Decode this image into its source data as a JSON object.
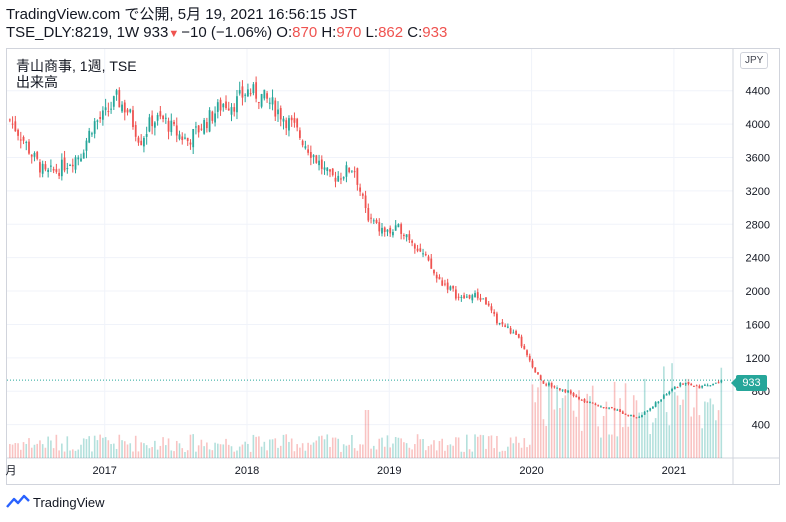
{
  "header": {
    "line1": "TradingView.com で公開, 5月 19, 2021 16:56:15 JST",
    "symbol": "TSE_DLY:8219, 1W",
    "last": "933",
    "change": "−10 (−1.06%)",
    "o_label": "O:",
    "o_value": "870",
    "h_label": "H:",
    "h_value": "970",
    "l_label": "L:",
    "l_value": "862",
    "c_label": "C:",
    "c_value": "933"
  },
  "legend": {
    "title": "青山商事, 1週, TSE",
    "volume": "出来高"
  },
  "currency": "JPY",
  "current_price_label": "933",
  "brand": "TradingView",
  "icons": {
    "brand": "tradingview-logo-icon",
    "change_direction": "down-triangle-icon"
  },
  "colors": {
    "up": "#26a69a",
    "down": "#ef5350",
    "grid": "#f0f3fa",
    "last_line": "#26a69a"
  },
  "chart_data": {
    "type": "candlestick",
    "x_ticks": [
      "月",
      "2017",
      "2018",
      "2019",
      "2020",
      "2021"
    ],
    "y_ticks": [
      400,
      800,
      1200,
      1600,
      2000,
      2400,
      2800,
      3200,
      3600,
      4000,
      4400
    ],
    "ylim": [
      0,
      4900
    ],
    "grid": true,
    "last_price": 933,
    "close_path": [
      [
        "2016-05",
        4050
      ],
      [
        "2016-06",
        3850
      ],
      [
        "2016-07",
        3600
      ],
      [
        "2016-08",
        3400
      ],
      [
        "2016-09",
        3450
      ],
      [
        "2016-10",
        3550
      ],
      [
        "2016-11",
        3650
      ],
      [
        "2016-12",
        4000
      ],
      [
        "2017-01",
        4100
      ],
      [
        "2017-02",
        4300
      ],
      [
        "2017-03",
        4150
      ],
      [
        "2017-04",
        3800
      ],
      [
        "2017-05",
        4050
      ],
      [
        "2017-06",
        4050
      ],
      [
        "2017-07",
        3900
      ],
      [
        "2017-08",
        3800
      ],
      [
        "2017-09",
        3950
      ],
      [
        "2017-10",
        4100
      ],
      [
        "2017-11",
        4250
      ],
      [
        "2017-12",
        4250
      ],
      [
        "2018-01",
        4400
      ],
      [
        "2018-02",
        4350
      ],
      [
        "2018-03",
        4250
      ],
      [
        "2018-04",
        4100
      ],
      [
        "2018-05",
        3950
      ],
      [
        "2018-06",
        3750
      ],
      [
        "2018-07",
        3550
      ],
      [
        "2018-08",
        3350
      ],
      [
        "2018-09",
        3400
      ],
      [
        "2018-10",
        3500
      ],
      [
        "2018-11",
        2950
      ],
      [
        "2018-12",
        2750
      ],
      [
        "2019-01",
        2700
      ],
      [
        "2019-02",
        2750
      ],
      [
        "2019-03",
        2600
      ],
      [
        "2019-04",
        2400
      ],
      [
        "2019-05",
        2150
      ],
      [
        "2019-06",
        2050
      ],
      [
        "2019-07",
        1900
      ],
      [
        "2019-08",
        1950
      ],
      [
        "2019-09",
        1900
      ],
      [
        "2019-10",
        1650
      ],
      [
        "2019-11",
        1550
      ],
      [
        "2019-12",
        1400
      ],
      [
        "2020-01",
        1100
      ],
      [
        "2020-02",
        900
      ],
      [
        "2020-03",
        850
      ],
      [
        "2020-04",
        800
      ],
      [
        "2020-05",
        700
      ],
      [
        "2020-06",
        650
      ],
      [
        "2020-07",
        620
      ],
      [
        "2020-08",
        580
      ],
      [
        "2020-09",
        520
      ],
      [
        "2020-10",
        480
      ],
      [
        "2020-11",
        600
      ],
      [
        "2020-12",
        720
      ],
      [
        "2021-01",
        850
      ],
      [
        "2021-02",
        900
      ],
      [
        "2021-03",
        850
      ],
      [
        "2021-04",
        880
      ],
      [
        "2021-05",
        933
      ]
    ]
  }
}
